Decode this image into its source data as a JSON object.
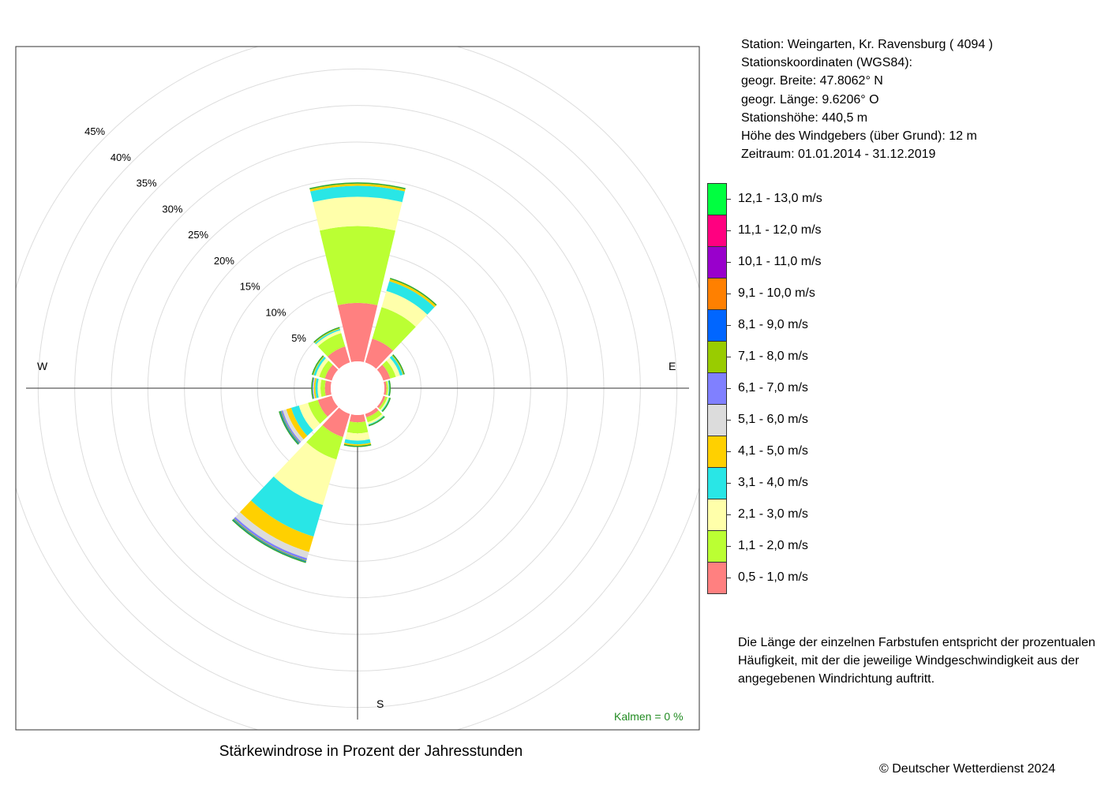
{
  "title": "Stärkewindrose in Prozent der Jahresstunden",
  "station": {
    "line1": "Station:  Weingarten, Kr. Ravensburg  ( 4094 )",
    "line2": "Stationskoordinaten (WGS84):",
    "line3": "geogr. Breite: 47.8062° N",
    "line4": "geogr. Länge:   9.6206° O",
    "line5": "Stationshöhe: 440,5 m",
    "line6": "Höhe des Windgebers (über Grund): 12 m",
    "line7": "Zeitraum: 01.01.2014 - 31.12.2019"
  },
  "note": "Die Länge der einzelnen Farbstufen entspricht der prozentualen Häufigkeit, mit der die jeweilige Windgeschwindigkeit aus der angegebenen Windrichtung auftritt.",
  "kalmen": "Kalmen  =  0 %",
  "copyright": "© Deutscher Wetterdienst  2024",
  "chart_data": {
    "type": "windrose",
    "direction_labels": [
      "W",
      "E",
      "S"
    ],
    "radial_ticks": [
      "5%",
      "10%",
      "15%",
      "20%",
      "25%",
      "30%",
      "35%",
      "40%",
      "45%"
    ],
    "radial_tick_values": [
      5,
      10,
      15,
      20,
      25,
      30,
      35,
      40,
      45
    ],
    "rmax": 45,
    "calm_percent": 0,
    "directions_deg": [
      0,
      30,
      60,
      90,
      120,
      150,
      180,
      210,
      240,
      270,
      300,
      330
    ],
    "classes": [
      {
        "label": "0,5 - 1,0 m/s",
        "color": "#FF8080"
      },
      {
        "label": "1,1 - 2,0 m/s",
        "color": "#BBFF33"
      },
      {
        "label": "2,1 - 3,0 m/s",
        "color": "#FFFFAA"
      },
      {
        "label": "3,1 - 4,0 m/s",
        "color": "#29E6E6"
      },
      {
        "label": "4,1 - 5,0 m/s",
        "color": "#FFD000"
      },
      {
        "label": "5,1 - 6,0 m/s",
        "color": "#DCDCDC"
      },
      {
        "label": "6,1 - 7,0 m/s",
        "color": "#8080FF"
      },
      {
        "label": "7,1 - 8,0 m/s",
        "color": "#99CC00"
      },
      {
        "label": "8,1 - 9,0 m/s",
        "color": "#0066FF"
      },
      {
        "label": "9,1 - 10,0 m/s",
        "color": "#FF8000"
      },
      {
        "label": "10,1 - 11,0 m/s",
        "color": "#9900CC"
      },
      {
        "label": "11,1 - 12,0 m/s",
        "color": "#FF0080"
      },
      {
        "label": "12,1 - 13,0 m/s",
        "color": "#00FF40"
      }
    ],
    "values": [
      [
        8.0,
        10.5,
        4.0,
        1.5,
        0.3
      ],
      [
        3.4,
        4.5,
        2.3,
        1.4,
        0.3
      ],
      [
        1.0,
        0.8,
        0.6,
        0.4,
        0.1
      ],
      [
        0.3,
        0.2,
        0.1,
        0.1
      ],
      [
        0.3,
        0.3,
        0.2,
        0.1
      ],
      [
        0.5,
        0.7,
        0.3,
        0.1
      ],
      [
        1.0,
        1.5,
        1.0,
        0.5,
        0.2
      ],
      [
        3.3,
        3.2,
        6.5,
        4.5,
        2.2,
        0.9,
        0.3,
        0.1,
        0.1
      ],
      [
        2.0,
        1.4,
        1.3,
        1.1,
        0.7,
        0.5,
        0.2,
        0.1,
        0.1
      ],
      [
        0.8,
        0.6,
        0.4,
        0.3,
        0.2,
        0.1,
        0.1
      ],
      [
        1.0,
        0.8,
        0.5,
        0.3,
        0.1
      ],
      [
        2.3,
        1.9,
        0.4,
        0.2,
        0.1
      ]
    ]
  }
}
